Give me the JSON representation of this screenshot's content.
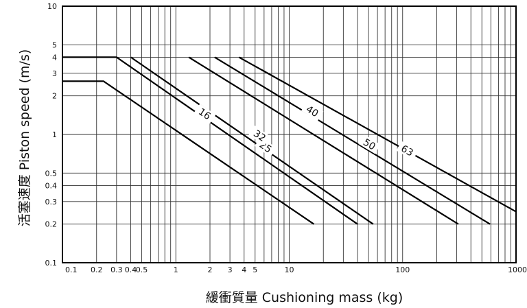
{
  "chart_data": {
    "type": "line",
    "xlabel": "緩衝質量 Cushioning mass (kg)",
    "ylabel": "活塞速度 Piston speed (m/s)",
    "xscale": "log",
    "yscale": "log",
    "xlim": [
      0.1,
      1000
    ],
    "ylim": [
      0.1,
      10
    ],
    "x_ticks": [
      0.1,
      0.2,
      0.3,
      0.4,
      0.5,
      1,
      2,
      3,
      4,
      5,
      10,
      100,
      1000
    ],
    "x_tick_labels": [
      "0.1",
      "0.2",
      "0.3",
      "0.4",
      "0.5",
      "1",
      "2",
      "3",
      "4",
      "5",
      "10",
      "100",
      "1000"
    ],
    "y_ticks": [
      0.1,
      0.2,
      0.3,
      0.4,
      0.5,
      1,
      2,
      3,
      4,
      5,
      10
    ],
    "y_tick_labels": [
      "0.1",
      "0.2",
      "0.3",
      "0.4",
      "0.5",
      "1",
      "2",
      "3",
      "4",
      "5",
      "10"
    ],
    "grid": true,
    "series": [
      {
        "name": "16",
        "points": [
          [
            0.1,
            2.6
          ],
          [
            0.23,
            2.6
          ],
          [
            16.5,
            0.2
          ]
        ],
        "label_at": [
          1.8,
          1.45
        ]
      },
      {
        "name": "25",
        "points": [
          [
            0.1,
            4.0
          ],
          [
            0.3,
            4.0
          ],
          [
            40,
            0.2
          ]
        ],
        "label_at": [
          6.2,
          0.8
        ]
      },
      {
        "name": "32",
        "points": [
          [
            0.4,
            4.0
          ],
          [
            55,
            0.2
          ]
        ],
        "label_at": [
          5.5,
          0.98
        ]
      },
      {
        "name": "40",
        "points": [
          [
            1.3,
            4.0
          ],
          [
            310,
            0.2
          ]
        ],
        "label_at": [
          16,
          1.52
        ]
      },
      {
        "name": "50",
        "points": [
          [
            2.2,
            4.0
          ],
          [
            590,
            0.2
          ]
        ],
        "label_at": [
          51,
          0.84
        ]
      },
      {
        "name": "63",
        "points": [
          [
            3.6,
            4.0
          ],
          [
            1000,
            0.25
          ]
        ],
        "label_at": [
          110,
          0.75
        ]
      }
    ]
  }
}
